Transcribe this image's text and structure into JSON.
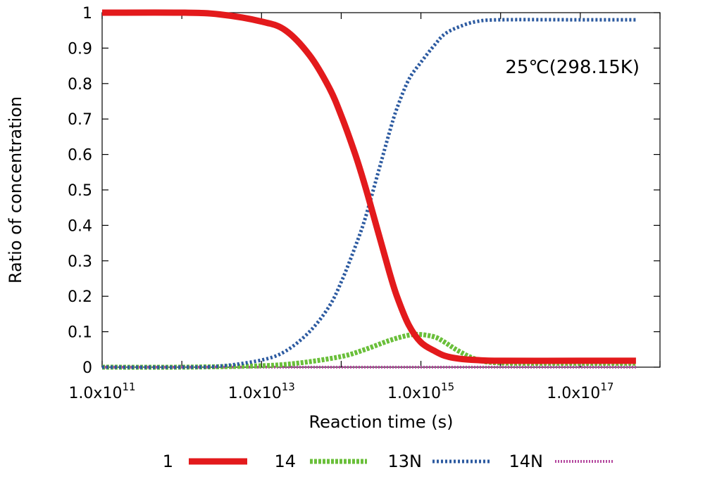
{
  "chart_data": {
    "type": "line",
    "title": "",
    "xlabel": "Reaction time (s)",
    "ylabel": "Ratio of concentration",
    "xscale": "log",
    "xlim": [
      100000000000.0,
      1e+18
    ],
    "ylim": [
      0,
      1
    ],
    "grid": false,
    "legend_placement": "bottom",
    "annotation": "25℃(298.15K)",
    "x_ticks": [
      {
        "value": 100000000000.0,
        "label": "1.0x10",
        "exp": "11"
      },
      {
        "value": 10000000000000.0,
        "label": "1.0x10",
        "exp": "13"
      },
      {
        "value": 1000000000000000.0,
        "label": "1.0x10",
        "exp": "15"
      },
      {
        "value": 1e+17,
        "label": "1.0x10",
        "exp": "17"
      }
    ],
    "y_ticks": [
      {
        "value": 0,
        "label": "0"
      },
      {
        "value": 0.1,
        "label": "0.1"
      },
      {
        "value": 0.2,
        "label": "0.2"
      },
      {
        "value": 0.3,
        "label": "0.3"
      },
      {
        "value": 0.4,
        "label": "0.4"
      },
      {
        "value": 0.5,
        "label": "0.5"
      },
      {
        "value": 0.6,
        "label": "0.6"
      },
      {
        "value": 0.7,
        "label": "0.7"
      },
      {
        "value": 0.8,
        "label": "0.8"
      },
      {
        "value": 0.9,
        "label": "0.9"
      },
      {
        "value": 1,
        "label": "1"
      }
    ],
    "series": [
      {
        "name": "1",
        "color": "#e31a1c",
        "style": "solid",
        "x": [
          100000000000.0,
          1000000000000.0,
          3000000000000.0,
          10000000000000.0,
          20000000000000.0,
          40000000000000.0,
          70000000000000.0,
          100000000000000.0,
          150000000000000.0,
          200000000000000.0,
          300000000000000.0,
          400000000000000.0,
          500000000000000.0,
          700000000000000.0,
          1000000000000000.0,
          1500000000000000.0,
          2000000000000000.0,
          3000000000000000.0,
          5000000000000000.0,
          1e+16,
          1e+17,
          5e+17
        ],
        "y": [
          1.0,
          1.0,
          0.995,
          0.975,
          0.95,
          0.88,
          0.79,
          0.71,
          0.6,
          0.51,
          0.37,
          0.27,
          0.2,
          0.12,
          0.07,
          0.045,
          0.032,
          0.024,
          0.02,
          0.018,
          0.018,
          0.018
        ]
      },
      {
        "name": "14",
        "color": "#6abf3a",
        "style": "dashed",
        "x": [
          100000000000.0,
          1000000000000.0,
          10000000000000.0,
          30000000000000.0,
          100000000000000.0,
          200000000000000.0,
          400000000000000.0,
          700000000000000.0,
          1000000000000000.0,
          1500000000000000.0,
          2000000000000000.0,
          3000000000000000.0,
          5000000000000000.0,
          1e+16,
          1e+17,
          5e+17
        ],
        "y": [
          0.0,
          0.0,
          0.004,
          0.012,
          0.03,
          0.05,
          0.075,
          0.09,
          0.092,
          0.085,
          0.07,
          0.045,
          0.022,
          0.012,
          0.011,
          0.011
        ]
      },
      {
        "name": "13N",
        "color": "#2c5aa0",
        "style": "dotted",
        "x": [
          100000000000.0,
          1000000000000.0,
          3000000000000.0,
          10000000000000.0,
          20000000000000.0,
          40000000000000.0,
          70000000000000.0,
          100000000000000.0,
          150000000000000.0,
          200000000000000.0,
          300000000000000.0,
          400000000000000.0,
          500000000000000.0,
          700000000000000.0,
          1000000000000000.0,
          1500000000000000.0,
          2000000000000000.0,
          3000000000000000.0,
          5000000000000000.0,
          1e+16,
          1e+17,
          5e+17
        ],
        "y": [
          0.0,
          0.0,
          0.003,
          0.02,
          0.045,
          0.1,
          0.17,
          0.24,
          0.34,
          0.42,
          0.56,
          0.66,
          0.73,
          0.81,
          0.86,
          0.91,
          0.94,
          0.96,
          0.975,
          0.98,
          0.98,
          0.98
        ]
      },
      {
        "name": "14N",
        "color": "#b54a9f",
        "style": "dotted-fine",
        "x": [
          100000000000.0,
          10000000000000.0,
          1000000000000000.0,
          1e+17,
          5e+17
        ],
        "y": [
          0.0,
          0.0,
          0.0,
          0.0,
          0.0
        ]
      }
    ]
  }
}
